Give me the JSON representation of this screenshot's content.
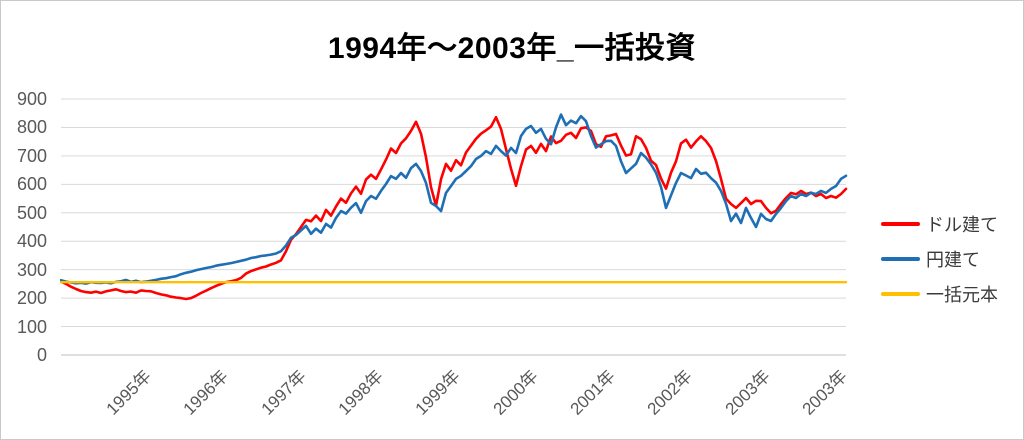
{
  "chart": {
    "title": "1994年〜2003年_一括投資",
    "legend": [
      {
        "label": "ドル建て",
        "color": "#FF0000"
      },
      {
        "label": "円建て",
        "color": "#1F6FB5"
      },
      {
        "label": "一括元本",
        "color": "#FFC000"
      }
    ],
    "colors": {
      "grid": "#D9D9D9",
      "axis_line": "#BFBFBF",
      "tick_text": "#595959",
      "title_text": "#000000"
    }
  },
  "chart_data": {
    "type": "line",
    "title": "1994年〜2003年_一括投資",
    "ylim": [
      0,
      900
    ],
    "y_ticks": [
      0,
      100,
      200,
      300,
      400,
      500,
      600,
      700,
      800,
      900
    ],
    "x_tick_labels": [
      "1995年",
      "1996年",
      "1997年",
      "1998年",
      "1999年",
      "2000年",
      "2001年",
      "2002年",
      "2003年",
      "2003年"
    ],
    "grid": "horizontal",
    "legend_position": "right",
    "x_range_note": "daily data from 1994 to mid-2003, sampled here at uniform intervals",
    "series": [
      {
        "name": "ドル建て",
        "color": "#FF0000",
        "values": [
          258,
          250,
          240,
          232,
          225,
          221,
          219,
          223,
          218,
          224,
          227,
          231,
          225,
          221,
          223,
          219,
          227,
          225,
          224,
          218,
          213,
          210,
          205,
          202,
          200,
          197,
          200,
          208,
          218,
          226,
          235,
          243,
          250,
          256,
          259,
          263,
          271,
          286,
          295,
          301,
          307,
          311,
          318,
          324,
          333,
          365,
          405,
          425,
          450,
          475,
          470,
          490,
          471,
          510,
          490,
          522,
          550,
          535,
          568,
          592,
          567,
          617,
          634,
          619,
          652,
          687,
          726,
          710,
          744,
          762,
          788,
          820,
          778,
          695,
          590,
          525,
          618,
          672,
          648,
          685,
          667,
          712,
          736,
          760,
          778,
          790,
          803,
          836,
          795,
          724,
          655,
          595,
          664,
          722,
          735,
          711,
          742,
          717,
          768,
          745,
          753,
          774,
          781,
          763,
          797,
          800,
          788,
          741,
          732,
          769,
          772,
          777,
          736,
          701,
          706,
          769,
          759,
          728,
          683,
          668,
          621,
          585,
          641,
          681,
          744,
          757,
          729,
          751,
          769,
          752,
          728,
          682,
          619,
          550,
          531,
          517,
          534,
          552,
          531,
          542,
          541,
          517,
          498,
          507,
          531,
          552,
          570,
          565,
          577,
          566,
          571,
          559,
          566,
          552,
          559,
          553,
          566,
          584
        ]
      },
      {
        "name": "円建て",
        "color": "#1F6FB5",
        "values": [
          263,
          258,
          255,
          252,
          254,
          251,
          256,
          254,
          253,
          255,
          252,
          257,
          259,
          264,
          257,
          261,
          256,
          258,
          261,
          264,
          268,
          270,
          274,
          277,
          284,
          289,
          293,
          298,
          302,
          306,
          309,
          314,
          317,
          320,
          323,
          327,
          331,
          335,
          341,
          344,
          348,
          350,
          353,
          357,
          365,
          385,
          412,
          422,
          438,
          454,
          426,
          444,
          430,
          461,
          448,
          482,
          506,
          497,
          518,
          534,
          500,
          541,
          559,
          549,
          577,
          601,
          629,
          619,
          640,
          623,
          657,
          672,
          647,
          605,
          535,
          524,
          506,
          570,
          594,
          619,
          630,
          647,
          664,
          689,
          700,
          717,
          707,
          735,
          717,
          701,
          728,
          710,
          770,
          795,
          805,
          781,
          795,
          760,
          741,
          800,
          845,
          808,
          824,
          815,
          840,
          822,
          770,
          729,
          741,
          752,
          753,
          735,
          681,
          640,
          656,
          672,
          710,
          694,
          670,
          641,
          591,
          517,
          561,
          605,
          640,
          631,
          622,
          654,
          637,
          641,
          622,
          606,
          577,
          532,
          471,
          497,
          464,
          517,
          482,
          450,
          496,
          478,
          471,
          496,
          517,
          541,
          559,
          552,
          566,
          559,
          570,
          566,
          577,
          570,
          584,
          594,
          619,
          630
        ]
      },
      {
        "name": "一括元本",
        "color": "#FFC000",
        "constant_value": 256
      }
    ]
  }
}
